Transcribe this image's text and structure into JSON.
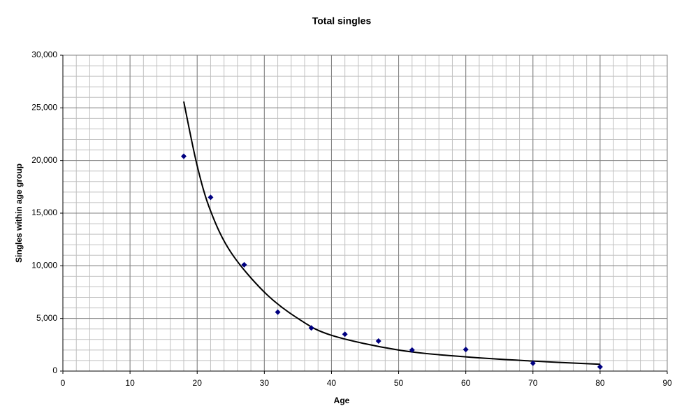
{
  "chart_data": {
    "type": "scatter",
    "title": "Total singles",
    "x_label": "Age",
    "y_label": "Singles within age group",
    "series": [
      {
        "x": [
          18,
          22,
          27,
          32,
          37,
          42,
          47,
          52,
          60,
          70,
          80
        ],
        "values": [
          20400,
          16500,
          10100,
          5600,
          4100,
          3500,
          2850,
          2000,
          2050,
          750,
          400
        ],
        "color": "#000080"
      }
    ],
    "trendline": {
      "x": [
        18,
        20,
        22,
        25,
        30,
        35,
        40,
        50,
        60,
        70,
        80
      ],
      "values": [
        25600,
        19500,
        15200,
        11300,
        7500,
        5000,
        3400,
        2000,
        1350,
        950,
        650
      ],
      "color": "#000000"
    },
    "xlim": [
      0,
      90
    ],
    "xticks": [
      0,
      10,
      20,
      30,
      40,
      50,
      60,
      70,
      80,
      90
    ],
    "ylim": [
      0,
      30000
    ],
    "yticks": [
      0,
      {
        "value": 5000,
        "label": "5,000"
      },
      {
        "value": 10000,
        "label": "10,000"
      },
      {
        "value": 15000,
        "label": "15,000"
      },
      {
        "value": 20000,
        "label": "20,000"
      },
      {
        "value": 25000,
        "label": "25,000"
      },
      {
        "value": 30000,
        "label": "30,000"
      }
    ],
    "grid": true,
    "grid_minor": {
      "x": 2,
      "y": 1000
    }
  }
}
